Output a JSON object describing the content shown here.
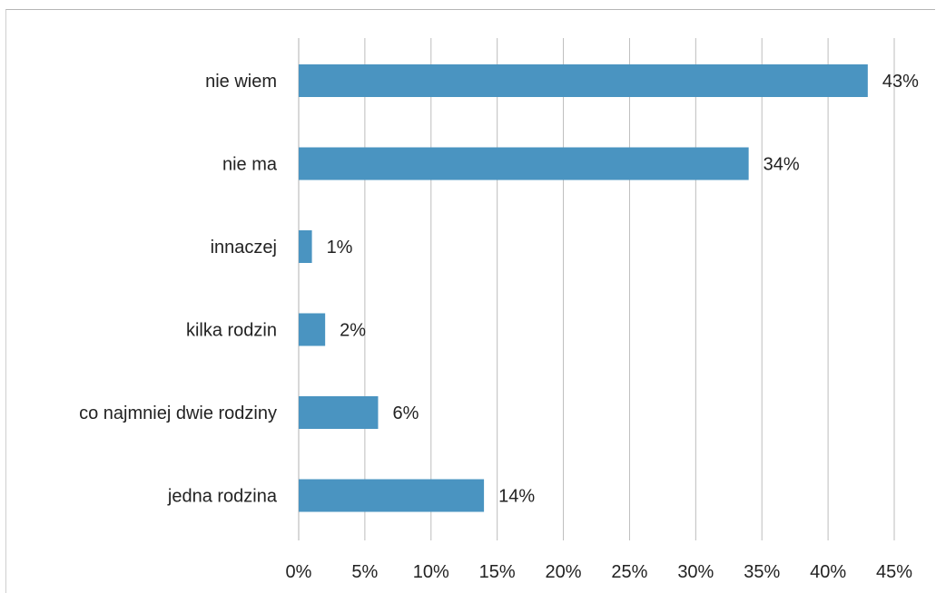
{
  "chart_data": {
    "type": "bar",
    "orientation": "horizontal",
    "categories": [
      "nie wiem",
      "nie ma",
      "innaczej",
      "kilka rodzin",
      "co najmniej dwie rodziny",
      "jedna rodzina"
    ],
    "values": [
      43,
      34,
      1,
      2,
      6,
      14
    ],
    "data_labels": [
      "43%",
      "34%",
      "1%",
      "2%",
      "6%",
      "14%"
    ],
    "x_ticks": [
      "0%",
      "5%",
      "10%",
      "15%",
      "20%",
      "25%",
      "30%",
      "35%",
      "40%",
      "45%"
    ],
    "xlim": [
      0,
      45
    ],
    "title": "",
    "xlabel": "",
    "ylabel": "",
    "grid": "vertical",
    "legend": "none",
    "bar_color": "#4a94c1"
  }
}
